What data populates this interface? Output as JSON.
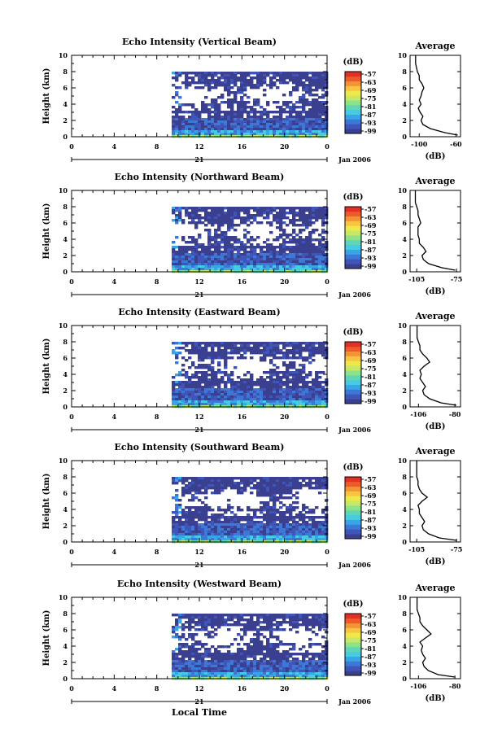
{
  "figure": {
    "x_axis_label": "Local Time",
    "day_label": "21",
    "month_label": "Jan 2006",
    "avg_title": "Average",
    "unit_label": "(dB)"
  },
  "colormap": [
    "#3b3f8f",
    "#3f55b8",
    "#3d78d6",
    "#3aa5e6",
    "#45cbe3",
    "#5fd6b8",
    "#8de38a",
    "#c6e866",
    "#eee84c",
    "#f8c441",
    "#f59238",
    "#ee5a2e",
    "#e42f27"
  ],
  "chart_data": [
    {
      "type": "heatmap",
      "title": "Echo Intensity (Vertical Beam)",
      "ylabel": "Height (km)",
      "xlabel": "Local Time",
      "x_ticks": [
        "0",
        "4",
        "8",
        "12",
        "16",
        "20",
        "0"
      ],
      "y_ticks": [
        "0",
        "2",
        "4",
        "6",
        "8",
        "10"
      ],
      "xlim": [
        0,
        24
      ],
      "ylim": [
        0,
        10
      ],
      "data_start_hour": 9.4,
      "data_top_km": 8,
      "colorbar_labels": [
        "-57",
        "-63",
        "-69",
        "-75",
        "-81",
        "-87",
        "-93",
        "-99"
      ],
      "profile": {
        "xlabel": "(dB)",
        "x_ticks": [
          "-100",
          "-60"
        ],
        "xlim": [
          -110,
          -55
        ],
        "heights": [
          0.2,
          0.5,
          1,
          1.5,
          2,
          2.5,
          3,
          3.5,
          4,
          4.5,
          5,
          5.5,
          6,
          6.5,
          7,
          7.5,
          8,
          8.5,
          9,
          9.5,
          10
        ],
        "values": [
          -58,
          -72,
          -88,
          -96,
          -98,
          -96,
          -99,
          -101,
          -98,
          -100,
          -98,
          -97,
          -95,
          -97,
          -100,
          -100,
          -102,
          -103,
          -104,
          -104,
          -104
        ]
      }
    },
    {
      "type": "heatmap",
      "title": "Echo Intensity (Northward Beam)",
      "ylabel": "Height (km)",
      "xlabel": "Local Time",
      "x_ticks": [
        "0",
        "4",
        "8",
        "12",
        "16",
        "20",
        "0"
      ],
      "y_ticks": [
        "0",
        "2",
        "4",
        "6",
        "8",
        "10"
      ],
      "xlim": [
        0,
        24
      ],
      "ylim": [
        0,
        10
      ],
      "data_start_hour": 9.4,
      "data_top_km": 8,
      "colorbar_labels": [
        "-57",
        "-63",
        "-69",
        "-75",
        "-81",
        "-87",
        "-93",
        "-99"
      ],
      "profile": {
        "xlabel": "(dB)",
        "x_ticks": [
          "-105",
          "-75"
        ],
        "xlim": [
          -110,
          -72
        ],
        "heights": [
          0.2,
          0.5,
          1,
          1.5,
          2,
          2.5,
          3,
          3.5,
          4,
          4.5,
          5,
          5.5,
          6,
          6.5,
          7,
          7.5,
          8,
          8.5,
          9,
          9.5,
          10
        ],
        "values": [
          -76,
          -86,
          -96,
          -100,
          -101,
          -98,
          -100,
          -103,
          -103,
          -104,
          -104,
          -104,
          -102,
          -103,
          -104,
          -104,
          -105,
          -106,
          -106,
          -106,
          -106
        ]
      }
    },
    {
      "type": "heatmap",
      "title": "Echo Intensity (Eastward Beam)",
      "ylabel": "Height (km)",
      "xlabel": "Local Time",
      "x_ticks": [
        "0",
        "4",
        "8",
        "12",
        "16",
        "20",
        "0"
      ],
      "y_ticks": [
        "0",
        "2",
        "4",
        "6",
        "8",
        "10"
      ],
      "xlim": [
        0,
        24
      ],
      "ylim": [
        0,
        10
      ],
      "data_start_hour": 9.4,
      "data_top_km": 8,
      "colorbar_labels": [
        "-57",
        "-63",
        "-69",
        "-75",
        "-81",
        "-87",
        "-93",
        "-99"
      ],
      "profile": {
        "xlabel": "(dB)",
        "x_ticks": [
          "-106",
          "-80"
        ],
        "xlim": [
          -112,
          -76
        ],
        "heights": [
          0.2,
          0.5,
          1,
          1.5,
          2,
          2.5,
          3,
          3.5,
          4,
          4.5,
          5,
          5.5,
          6,
          6.5,
          7,
          7.5,
          8,
          8.5,
          9,
          9.5,
          10
        ],
        "values": [
          -79,
          -90,
          -98,
          -102,
          -103,
          -101,
          -103,
          -105,
          -104,
          -105,
          -102,
          -98,
          -100,
          -103,
          -105,
          -105,
          -106,
          -107,
          -107,
          -107,
          -107
        ]
      }
    },
    {
      "type": "heatmap",
      "title": "Echo Intensity (Southward Beam)",
      "ylabel": "Height (km)",
      "xlabel": "Local Time",
      "x_ticks": [
        "0",
        "4",
        "8",
        "12",
        "16",
        "20",
        "0"
      ],
      "y_ticks": [
        "0",
        "2",
        "4",
        "6",
        "8",
        "10"
      ],
      "xlim": [
        0,
        24
      ],
      "ylim": [
        0,
        10
      ],
      "data_start_hour": 9.4,
      "data_top_km": 8,
      "colorbar_labels": [
        "-57",
        "-63",
        "-69",
        "-75",
        "-81",
        "-87",
        "-93",
        "-99"
      ],
      "profile": {
        "xlabel": "(dB)",
        "x_ticks": [
          "-105",
          "-75"
        ],
        "xlim": [
          -110,
          -72
        ],
        "heights": [
          0.2,
          0.5,
          1,
          1.5,
          2,
          2.5,
          3,
          3.5,
          4,
          4.5,
          5,
          5.5,
          6,
          6.5,
          7,
          7.5,
          8,
          8.5,
          9,
          9.5,
          10
        ],
        "values": [
          -75,
          -88,
          -96,
          -100,
          -101,
          -99,
          -101,
          -103,
          -103,
          -104,
          -101,
          -97,
          -101,
          -103,
          -104,
          -104,
          -105,
          -105,
          -105,
          -105,
          -105
        ]
      }
    },
    {
      "type": "heatmap",
      "title": "Echo Intensity (Westward Beam)",
      "ylabel": "Height (km)",
      "xlabel": "Local Time",
      "x_ticks": [
        "0",
        "4",
        "8",
        "12",
        "16",
        "20",
        "0"
      ],
      "y_ticks": [
        "0",
        "2",
        "4",
        "6",
        "8",
        "10"
      ],
      "xlim": [
        0,
        24
      ],
      "ylim": [
        0,
        10
      ],
      "data_start_hour": 9.4,
      "data_top_km": 8,
      "colorbar_labels": [
        "-57",
        "-63",
        "-69",
        "-75",
        "-81",
        "-87",
        "-93",
        "-99"
      ],
      "profile": {
        "xlabel": "(dB)",
        "x_ticks": [
          "-106",
          "-80"
        ],
        "xlim": [
          -112,
          -76
        ],
        "heights": [
          0.2,
          0.5,
          1,
          1.5,
          2,
          2.5,
          3,
          3.5,
          4,
          4.5,
          5,
          5.5,
          6,
          6.5,
          7,
          7.5,
          8,
          8.5,
          9,
          9.5,
          10
        ],
        "values": [
          -80,
          -92,
          -99,
          -102,
          -103,
          -101,
          -103,
          -104,
          -103,
          -105,
          -101,
          -97,
          -100,
          -103,
          -105,
          -105,
          -106,
          -107,
          -107,
          -107,
          -107
        ]
      }
    }
  ]
}
